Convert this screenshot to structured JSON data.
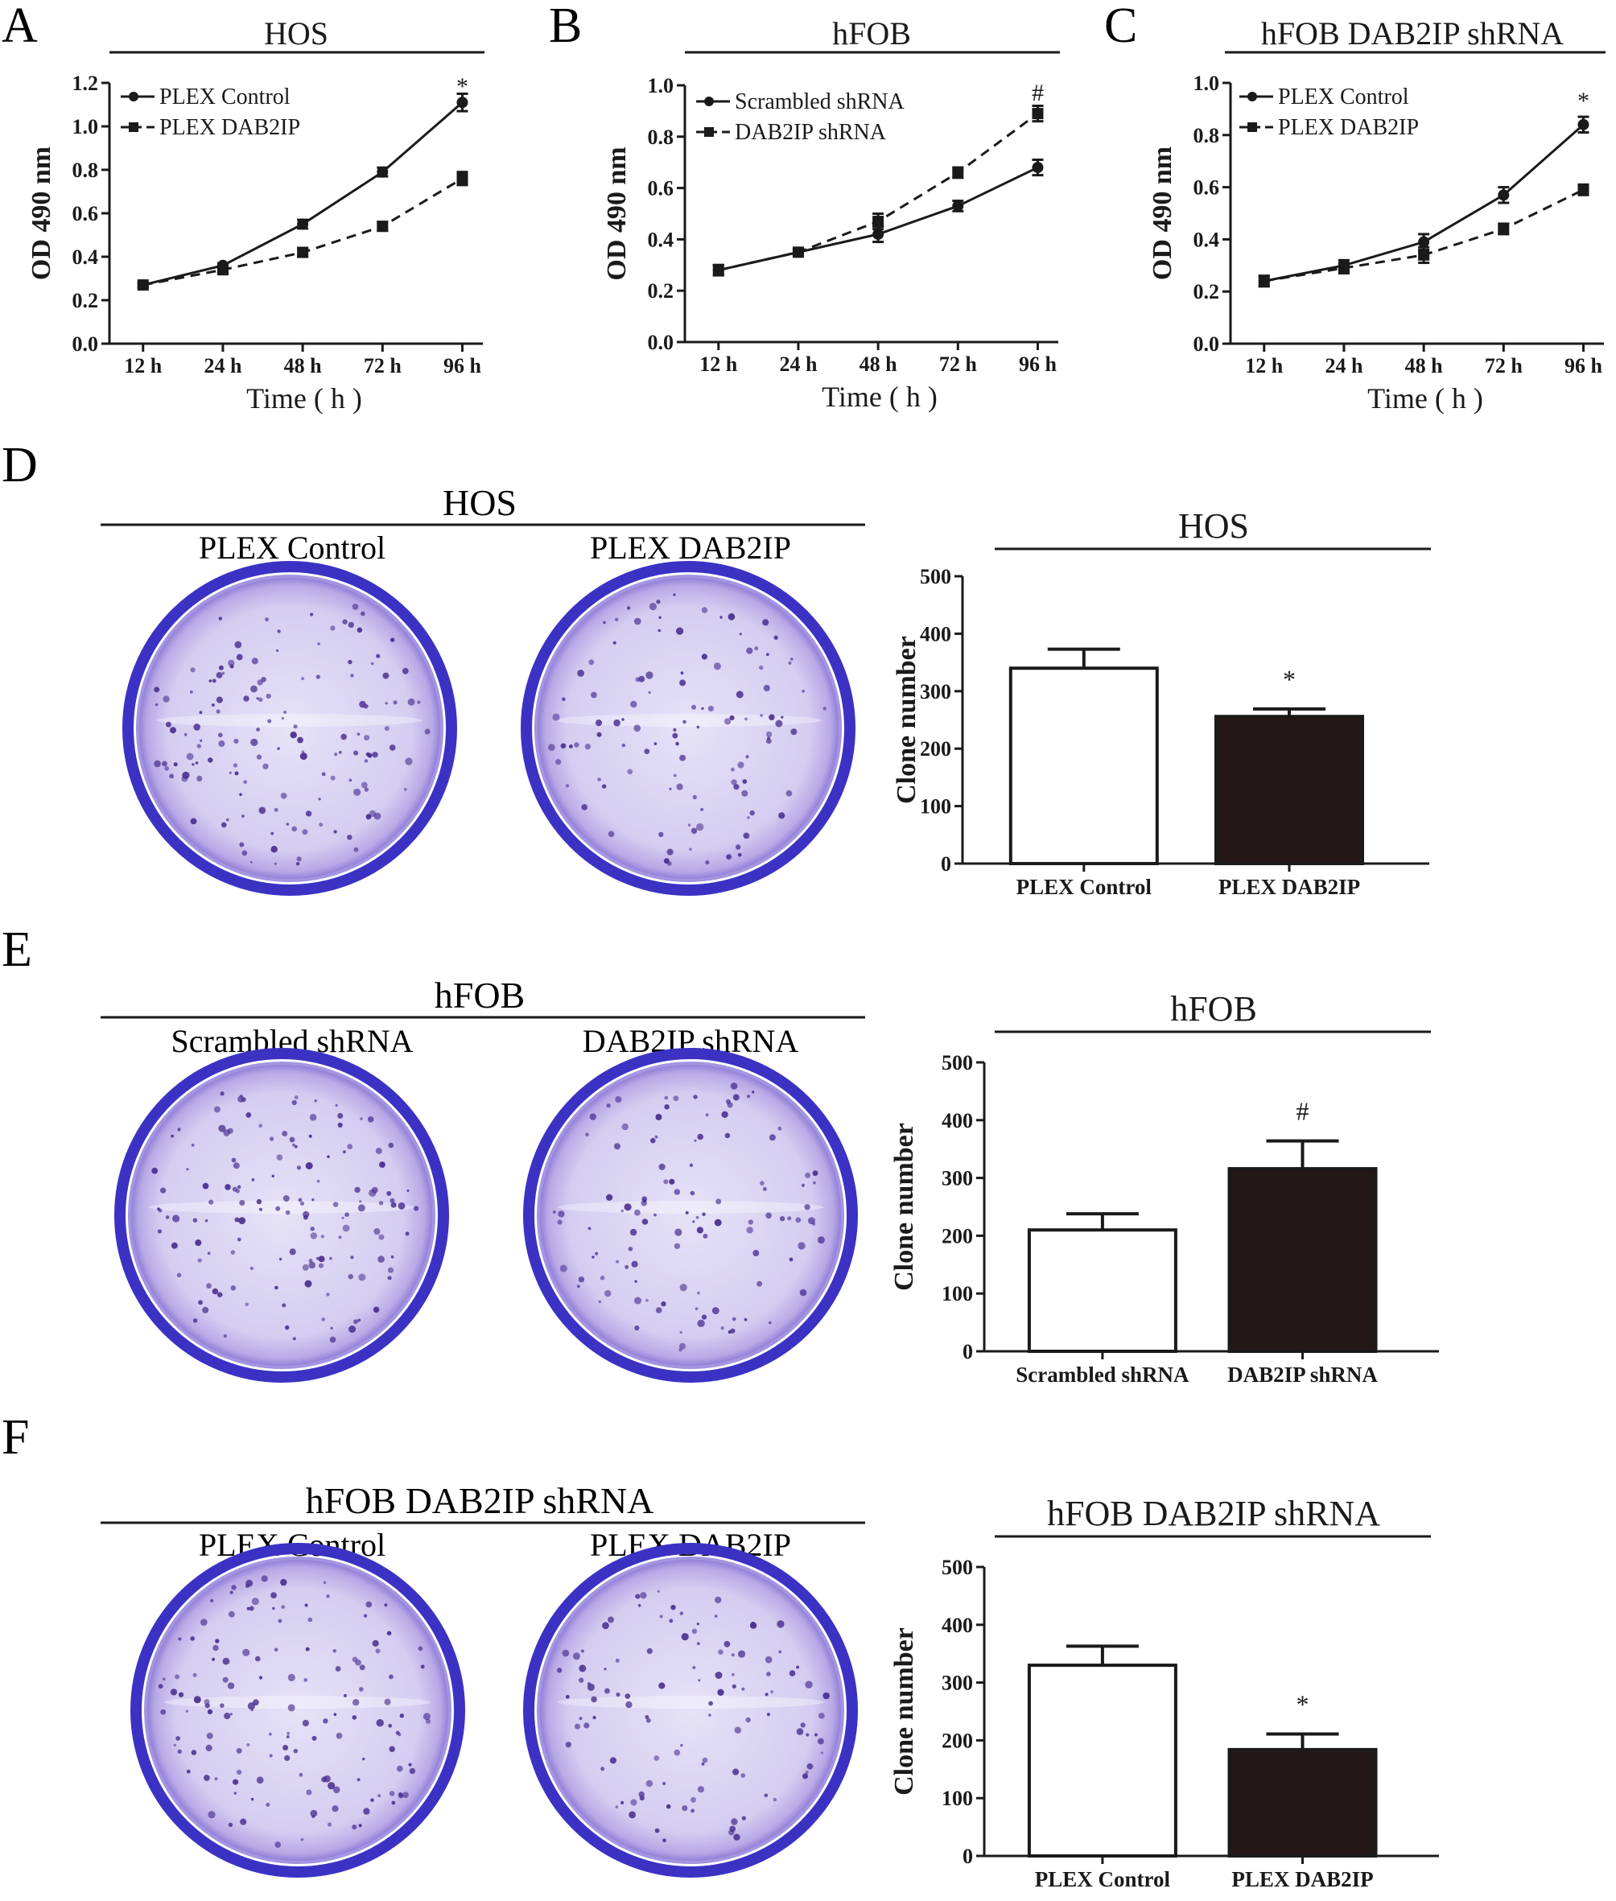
{
  "colors": {
    "ink": "#1a1a1a",
    "bar_fill_control": "#ffffff",
    "bar_fill_treated": "#231815",
    "dish_rim": "#3b32c4",
    "dish_fill": "#d8d2f3",
    "colony": "#4a2f8f"
  },
  "panels": {
    "A": {
      "letter": "A"
    },
    "B": {
      "letter": "B"
    },
    "C": {
      "letter": "C"
    },
    "D": {
      "letter": "D",
      "group_title": "HOS",
      "dish_labels": [
        "PLEX Control",
        "PLEX DAB2IP"
      ]
    },
    "E": {
      "letter": "E",
      "group_title": "hFOB",
      "dish_labels": [
        "Scrambled shRNA",
        "DAB2IP shRNA"
      ]
    },
    "F": {
      "letter": "F",
      "group_title": "hFOB DAB2IP shRNA",
      "dish_labels": [
        "PLEX Control",
        "PLEX DAB2IP"
      ]
    }
  },
  "chart_data": [
    {
      "id": "A",
      "type": "line",
      "title": "HOS",
      "xlabel": "Time ( h )",
      "ylabel": "OD 490 nm",
      "categories": [
        "12 h",
        "24 h",
        "48 h",
        "72 h",
        "96 h"
      ],
      "ylim": [
        0.0,
        1.2
      ],
      "yticks": [
        "0.0",
        "0.2",
        "0.4",
        "0.6",
        "0.8",
        "1.0",
        "1.2"
      ],
      "legend_position": "top-left",
      "series": [
        {
          "name": "PLEX Control",
          "marker": "circle",
          "dash": "solid",
          "values": [
            0.27,
            0.36,
            0.55,
            0.79,
            1.11
          ],
          "errors": [
            0.01,
            0.01,
            0.02,
            0.02,
            0.04
          ]
        },
        {
          "name": "PLEX DAB2IP",
          "marker": "square",
          "dash": "dashed",
          "values": [
            0.27,
            0.34,
            0.42,
            0.54,
            0.76
          ],
          "errors": [
            0.01,
            0.01,
            0.02,
            0.02,
            0.03
          ]
        }
      ],
      "annotation": {
        "text": "*",
        "category_index": 4,
        "value": 1.17
      }
    },
    {
      "id": "B",
      "type": "line",
      "title": "hFOB",
      "xlabel": "Time ( h )",
      "ylabel": "OD 490 nm",
      "categories": [
        "12 h",
        "24 h",
        "48 h",
        "72 h",
        "96 h"
      ],
      "ylim": [
        0.0,
        1.0
      ],
      "yticks": [
        "0.0",
        "0.2",
        "0.4",
        "0.6",
        "0.8",
        "1.0"
      ],
      "legend_position": "top-left",
      "series": [
        {
          "name": "Scrambled shRNA",
          "marker": "circle",
          "dash": "solid",
          "values": [
            0.28,
            0.35,
            0.42,
            0.53,
            0.68
          ],
          "errors": [
            0.02,
            0.01,
            0.03,
            0.02,
            0.03
          ]
        },
        {
          "name": "DAB2IP shRNA",
          "marker": "square",
          "dash": "dashed",
          "values": [
            0.28,
            0.35,
            0.47,
            0.66,
            0.89
          ],
          "errors": [
            0.02,
            0.01,
            0.03,
            0.02,
            0.03
          ]
        }
      ],
      "annotation": {
        "text": "#",
        "category_index": 4,
        "value": 0.96
      }
    },
    {
      "id": "C",
      "type": "line",
      "title": "hFOB DAB2IP shRNA",
      "xlabel": "Time ( h )",
      "ylabel": "OD 490 nm",
      "categories": [
        "12 h",
        "24 h",
        "48 h",
        "72 h",
        "96 h"
      ],
      "ylim": [
        0.0,
        1.0
      ],
      "yticks": [
        "0.0",
        "0.2",
        "0.4",
        "0.6",
        "0.8",
        "1.0"
      ],
      "legend_position": "top-left",
      "series": [
        {
          "name": "PLEX Control",
          "marker": "circle",
          "dash": "solid",
          "values": [
            0.24,
            0.3,
            0.39,
            0.57,
            0.84
          ],
          "errors": [
            0.02,
            0.02,
            0.03,
            0.03,
            0.03
          ]
        },
        {
          "name": "PLEX DAB2IP",
          "marker": "square",
          "dash": "dashed",
          "values": [
            0.24,
            0.29,
            0.34,
            0.44,
            0.59
          ],
          "errors": [
            0.02,
            0.02,
            0.03,
            0.02,
            0.02
          ]
        }
      ],
      "annotation": {
        "text": "*",
        "category_index": 4,
        "value": 0.92
      }
    },
    {
      "id": "D",
      "type": "bar",
      "title": "HOS",
      "ylabel": "Clone number",
      "categories": [
        "PLEX Control",
        "PLEX DAB2IP"
      ],
      "values": [
        340,
        256
      ],
      "errors": [
        33,
        13
      ],
      "ylim": [
        0,
        500
      ],
      "yticks": [
        "0",
        "100",
        "200",
        "300",
        "400",
        "500"
      ],
      "annotation": {
        "text": "*",
        "bar_index": 1
      }
    },
    {
      "id": "E",
      "type": "bar",
      "title": "hFOB",
      "ylabel": "Clone number",
      "categories": [
        "Scrambled shRNA",
        "DAB2IP shRNA"
      ],
      "values": [
        210,
        316
      ],
      "errors": [
        28,
        48
      ],
      "ylim": [
        0,
        500
      ],
      "yticks": [
        "0",
        "100",
        "200",
        "300",
        "400",
        "500"
      ],
      "annotation": {
        "text": "#",
        "bar_index": 1
      }
    },
    {
      "id": "F",
      "type": "bar",
      "title": "hFOB DAB2IP shRNA",
      "ylabel": "Clone number",
      "categories": [
        "PLEX Control",
        "PLEX DAB2IP"
      ],
      "values": [
        330,
        184
      ],
      "errors": [
        33,
        27
      ],
      "ylim": [
        0,
        500
      ],
      "yticks": [
        "0",
        "100",
        "200",
        "300",
        "400",
        "500"
      ],
      "annotation": {
        "text": "*",
        "bar_index": 1
      }
    }
  ]
}
